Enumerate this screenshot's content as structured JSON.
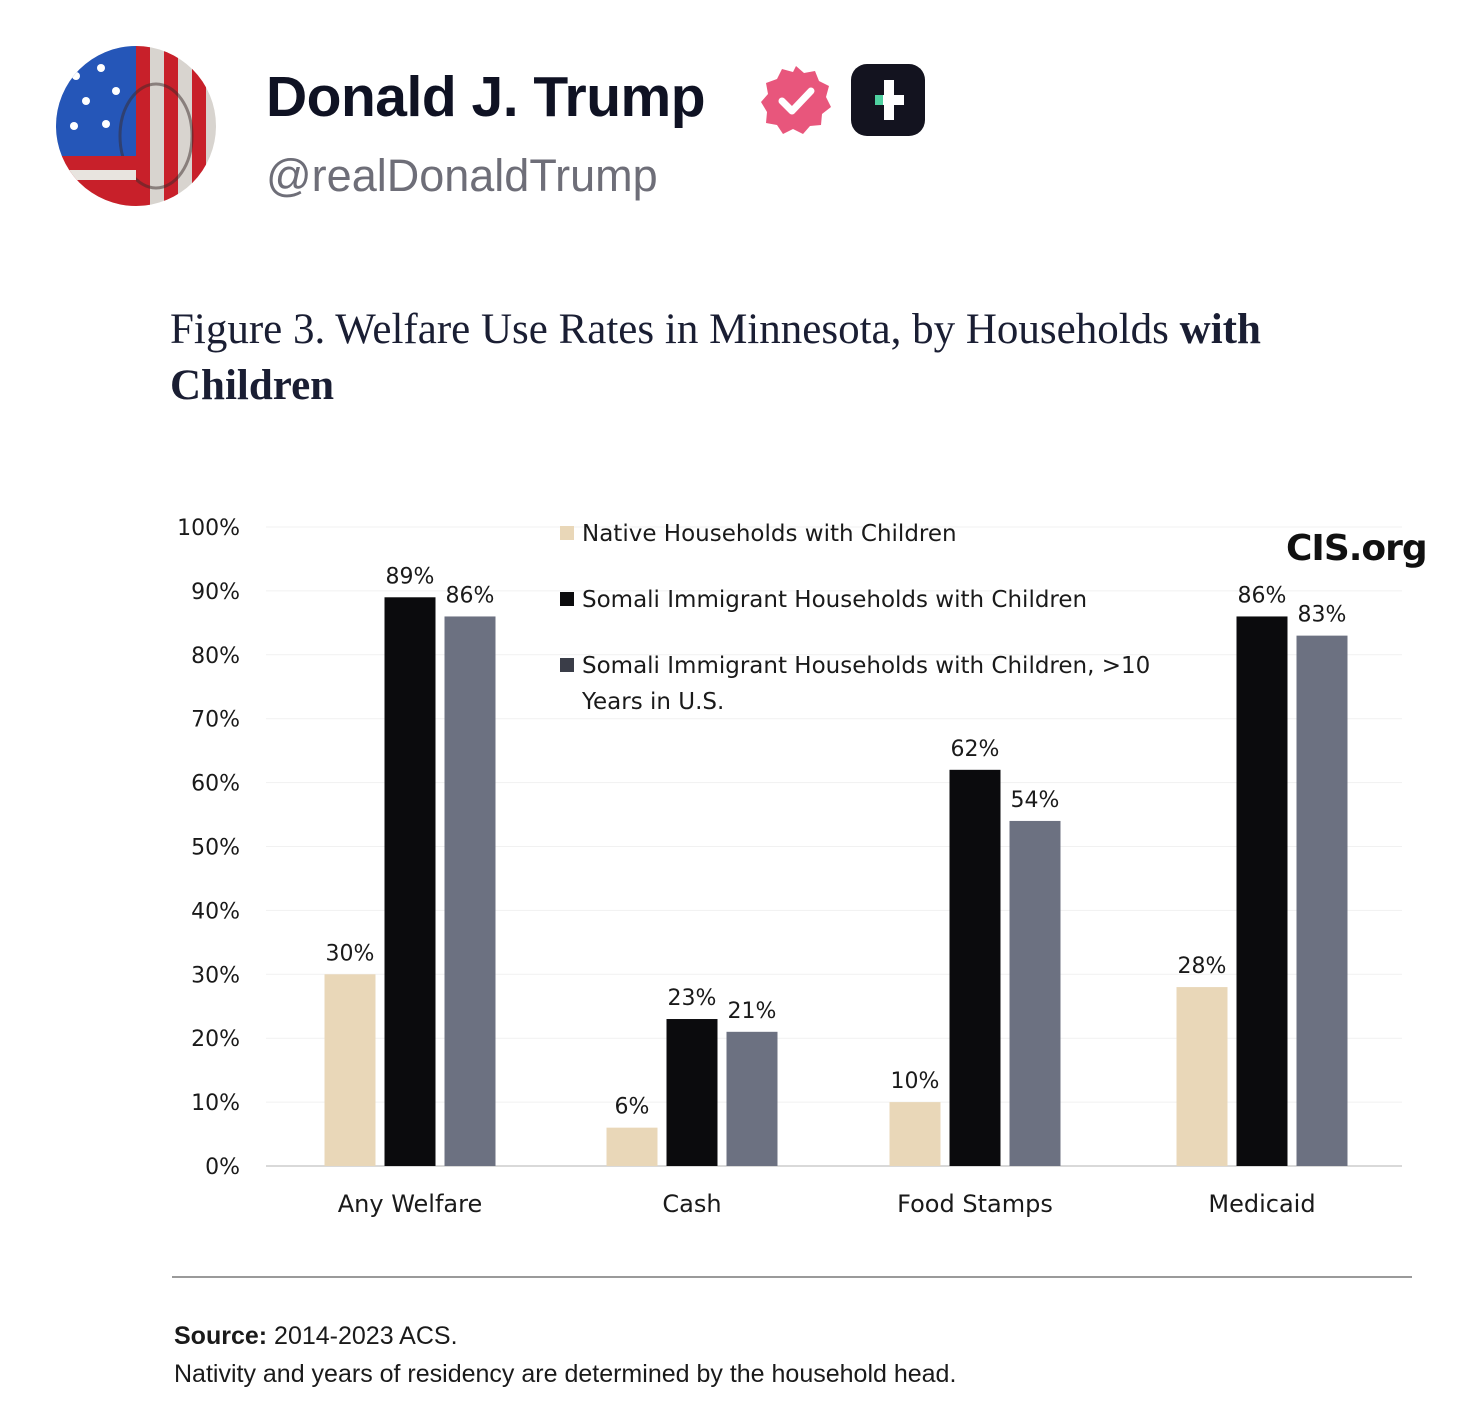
{
  "post": {
    "author_name": "Donald J. Trump",
    "handle": "@realDonaldTrump",
    "verified_badge_color": "#e8567c",
    "plus_badge_color": "#13131f"
  },
  "figure": {
    "title_regular": "Figure 3. Welfare Use Rates in Minnesota, by Households ",
    "title_bold": "with Children",
    "watermark": "CIS.org",
    "source_label": "Source:",
    "source_text": " 2014-2023 ACS.",
    "note": "Nativity and years of residency are determined by the household head."
  },
  "chart_data": {
    "type": "bar",
    "title": "Figure 3. Welfare Use Rates in Minnesota, by Households with Children",
    "categories": [
      "Any Welfare",
      "Cash",
      "Food Stamps",
      "Medicaid"
    ],
    "series": [
      {
        "name": "Native Households with Children",
        "color": "#e9d7b8",
        "values": [
          30,
          6,
          10,
          28
        ],
        "labels": [
          "30%",
          "6%",
          "10%",
          "28%"
        ]
      },
      {
        "name": "Somali Immigrant Households with Children",
        "color": "#0b0b0d",
        "values": [
          89,
          23,
          62,
          86
        ],
        "labels": [
          "89%",
          "23%",
          "62%",
          "86%"
        ]
      },
      {
        "name": "Somali Immigrant Households with Children, >10 Years in U.S.",
        "color": "#6c7181",
        "values": [
          86,
          21,
          54,
          83
        ],
        "labels": [
          "86%",
          "21%",
          "54%",
          "83%"
        ]
      }
    ],
    "y_ticks": [
      "0%",
      "10%",
      "20%",
      "30%",
      "40%",
      "50%",
      "60%",
      "70%",
      "80%",
      "90%",
      "100%"
    ],
    "ylim": [
      0,
      100
    ],
    "xlabel": "",
    "ylabel": "",
    "grid": true,
    "legend_position": "top-center"
  },
  "legend": {
    "items": [
      {
        "lines": [
          "Native Households with Children"
        ]
      },
      {
        "lines": [
          "Somali Immigrant Households with Children"
        ]
      },
      {
        "lines": [
          "Somali Immigrant Households with Children, >10",
          "Years in U.S."
        ]
      }
    ]
  }
}
